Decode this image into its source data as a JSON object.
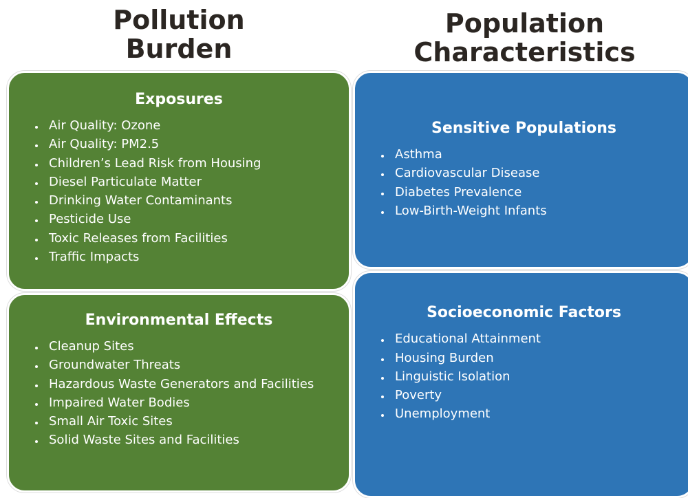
{
  "columns": [
    {
      "heading": "Pollution Burden",
      "color": "#548235",
      "boxes": [
        {
          "title": "Exposures",
          "items": [
            "Air Quality: Ozone",
            "Air Quality: PM2.5",
            "Children’s Lead Risk from Housing",
            "Diesel Particulate Matter",
            "Drinking Water Contaminants",
            "Pesticide Use",
            "Toxic Releases from Facilities",
            "Traffic Impacts"
          ]
        },
        {
          "title": "Environmental Effects",
          "items": [
            "Cleanup Sites",
            "Groundwater Threats",
            "Hazardous Waste Generators and Facilities",
            "Impaired Water Bodies",
            "Small Air Toxic Sites",
            "Solid Waste Sites and Facilities"
          ]
        }
      ]
    },
    {
      "heading": "Population Characteristics",
      "color": "#2e75b6",
      "boxes": [
        {
          "title": "Sensitive Populations",
          "items": [
            "Asthma",
            "Cardiovascular Disease",
            "Diabetes Prevalence",
            "Low-Birth-Weight Infants"
          ]
        },
        {
          "title": "Socioeconomic Factors",
          "items": [
            "Educational Attainment",
            "Housing Burden",
            "Linguistic Isolation",
            "Poverty",
            "Unemployment"
          ]
        }
      ]
    }
  ]
}
